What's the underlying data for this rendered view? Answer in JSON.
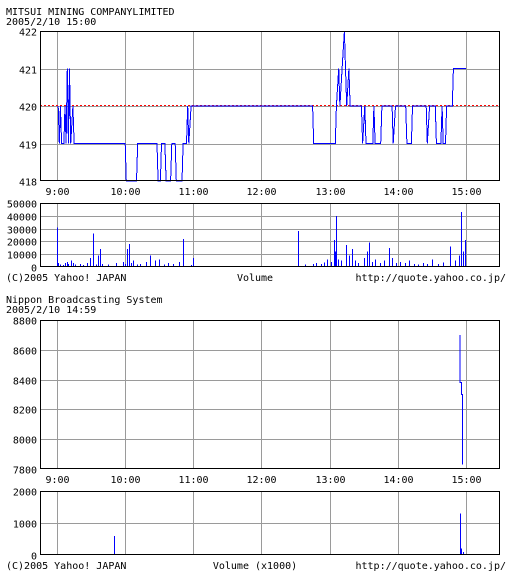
{
  "chart_data": [
    {
      "type": "line",
      "title": "MITSUI  MINING  COMPANYLIMITED",
      "subtitle": "2005/2/10 15:00",
      "x_ticks": [
        "9:00",
        "10:00",
        "11:00",
        "12:00",
        "13:00",
        "14:00",
        "15:00"
      ],
      "x_range": [
        "8:45",
        "15:30"
      ],
      "price": {
        "ylim": [
          418,
          422
        ],
        "y_ticks": [
          418,
          419,
          420,
          421,
          422
        ],
        "reference": 420,
        "reference_color": "#ff0000",
        "line_color": "#0000ff",
        "points": [
          [
            "9:01",
            420
          ],
          [
            "9:02",
            419
          ],
          [
            "9:03",
            420
          ],
          [
            "9:04",
            419
          ],
          [
            "9:06",
            419
          ],
          [
            "9:07",
            420
          ],
          [
            "9:08",
            419
          ],
          [
            "9:09",
            421
          ],
          [
            "9:10",
            419
          ],
          [
            "9:11",
            421
          ],
          [
            "9:12",
            419
          ],
          [
            "9:14",
            420
          ],
          [
            "9:15",
            419
          ],
          [
            "10:00",
            419
          ],
          [
            "10:01",
            418
          ],
          [
            "10:10",
            418
          ],
          [
            "10:11",
            419
          ],
          [
            "10:28",
            419
          ],
          [
            "10:29",
            418
          ],
          [
            "10:31",
            418
          ],
          [
            "10:32",
            419
          ],
          [
            "10:35",
            419
          ],
          [
            "10:36",
            418
          ],
          [
            "10:40",
            418
          ],
          [
            "10:41",
            419
          ],
          [
            "10:44",
            419
          ],
          [
            "10:45",
            418
          ],
          [
            "10:50",
            418
          ],
          [
            "10:51",
            419
          ],
          [
            "10:54",
            419
          ],
          [
            "10:55",
            420
          ],
          [
            "10:56",
            419
          ],
          [
            "10:58",
            420
          ],
          [
            "12:45",
            420
          ],
          [
            "12:46",
            419
          ],
          [
            "13:05",
            419
          ],
          [
            "13:06",
            420
          ],
          [
            "13:08",
            421
          ],
          [
            "13:09",
            420
          ],
          [
            "13:11",
            421
          ],
          [
            "13:13",
            422
          ],
          [
            "13:14",
            421
          ],
          [
            "13:15",
            420
          ],
          [
            "13:17",
            421
          ],
          [
            "13:18",
            420
          ],
          [
            "13:28",
            420
          ],
          [
            "13:29",
            419
          ],
          [
            "13:31",
            420
          ],
          [
            "13:32",
            419
          ],
          [
            "13:38",
            419
          ],
          [
            "13:39",
            420
          ],
          [
            "13:40",
            419
          ],
          [
            "13:45",
            419
          ],
          [
            "13:46",
            420
          ],
          [
            "13:55",
            420
          ],
          [
            "13:56",
            419
          ],
          [
            "13:58",
            420
          ],
          [
            "14:07",
            420
          ],
          [
            "14:08",
            419
          ],
          [
            "14:12",
            419
          ],
          [
            "14:13",
            420
          ],
          [
            "14:25",
            420
          ],
          [
            "14:26",
            419
          ],
          [
            "14:28",
            420
          ],
          [
            "14:33",
            420
          ],
          [
            "14:34",
            419
          ],
          [
            "14:38",
            419
          ],
          [
            "14:39",
            420
          ],
          [
            "14:40",
            419
          ],
          [
            "14:42",
            419
          ],
          [
            "14:43",
            420
          ],
          [
            "14:48",
            420
          ],
          [
            "14:49",
            421
          ],
          [
            "15:00",
            421
          ]
        ]
      },
      "volume": {
        "label": "Volume",
        "ylim": [
          0,
          50000
        ],
        "y_ticks": [
          0,
          10000,
          20000,
          30000,
          40000,
          50000
        ],
        "bar_color": "#0000ff",
        "bars": [
          [
            "9:00",
            31000
          ],
          [
            "9:01",
            3000
          ],
          [
            "9:03",
            2000
          ],
          [
            "9:05",
            1500
          ],
          [
            "9:07",
            3000
          ],
          [
            "9:09",
            4000
          ],
          [
            "9:10",
            2500
          ],
          [
            "9:12",
            5000
          ],
          [
            "9:14",
            3000
          ],
          [
            "9:16",
            2000
          ],
          [
            "9:20",
            2500
          ],
          [
            "9:23",
            1500
          ],
          [
            "9:26",
            3000
          ],
          [
            "9:29",
            7000
          ],
          [
            "9:32",
            26000
          ],
          [
            "9:34",
            2000
          ],
          [
            "9:36",
            9000
          ],
          [
            "9:38",
            14000
          ],
          [
            "9:40",
            2500
          ],
          [
            "9:45",
            2000
          ],
          [
            "9:52",
            3000
          ],
          [
            "9:58",
            4000
          ],
          [
            "10:00",
            2500
          ],
          [
            "10:02",
            14000
          ],
          [
            "10:03",
            18000
          ],
          [
            "10:05",
            3000
          ],
          [
            "10:07",
            5000
          ],
          [
            "10:10",
            2000
          ],
          [
            "10:13",
            2500
          ],
          [
            "10:18",
            4000
          ],
          [
            "10:22",
            9000
          ],
          [
            "10:26",
            5000
          ],
          [
            "10:30",
            6000
          ],
          [
            "10:34",
            2000
          ],
          [
            "10:38",
            3000
          ],
          [
            "10:42",
            2500
          ],
          [
            "10:47",
            4000
          ],
          [
            "10:51",
            22000
          ],
          [
            "10:58",
            1500
          ],
          [
            "11:00",
            7000
          ],
          [
            "12:32",
            28000
          ],
          [
            "12:38",
            2000
          ],
          [
            "12:45",
            2500
          ],
          [
            "12:48",
            3000
          ],
          [
            "12:52",
            2500
          ],
          [
            "12:55",
            3500
          ],
          [
            "12:58",
            6000
          ],
          [
            "13:01",
            4000
          ],
          [
            "13:04",
            21000
          ],
          [
            "13:05",
            12000
          ],
          [
            "13:06",
            40000
          ],
          [
            "13:07",
            6000
          ],
          [
            "13:10",
            5000
          ],
          [
            "13:14",
            17000
          ],
          [
            "13:17",
            9000
          ],
          [
            "13:20",
            14000
          ],
          [
            "13:22",
            5000
          ],
          [
            "13:25",
            3000
          ],
          [
            "13:30",
            7000
          ],
          [
            "13:33",
            12000
          ],
          [
            "13:35",
            19000
          ],
          [
            "13:37",
            4000
          ],
          [
            "13:40",
            6000
          ],
          [
            "13:44",
            3000
          ],
          [
            "13:48",
            5000
          ],
          [
            "13:52",
            15000
          ],
          [
            "13:55",
            7000
          ],
          [
            "13:58",
            3000
          ],
          [
            "14:02",
            4000
          ],
          [
            "14:06",
            3000
          ],
          [
            "14:10",
            5000
          ],
          [
            "14:14",
            2500
          ],
          [
            "14:18",
            2000
          ],
          [
            "14:22",
            3000
          ],
          [
            "14:26",
            2500
          ],
          [
            "14:30",
            6000
          ],
          [
            "14:35",
            2500
          ],
          [
            "14:40",
            3500
          ],
          [
            "14:46",
            16000
          ],
          [
            "14:50",
            5000
          ],
          [
            "14:54",
            9000
          ],
          [
            "14:56",
            43000
          ],
          [
            "14:57",
            12000
          ],
          [
            "14:59",
            21000
          ]
        ]
      },
      "credit_left": "(C)2005 Yahoo! JAPAN",
      "credit_right": "http://quote.yahoo.co.jp/"
    },
    {
      "type": "line",
      "title": "Nippon  Broadcasting  System",
      "subtitle": "2005/2/10 14:59",
      "x_ticks": [
        "9:00",
        "10:00",
        "11:00",
        "12:00",
        "13:00",
        "14:00",
        "15:00"
      ],
      "x_range": [
        "8:45",
        "15:30"
      ],
      "price": {
        "ylim": [
          7800,
          8800
        ],
        "y_ticks": [
          7800,
          8000,
          8200,
          8400,
          8600,
          8800
        ],
        "reference": 7800,
        "reference_color": "#ff0000",
        "line_color": "#0000ff",
        "points": [
          [
            "14:55",
            8700
          ],
          [
            "14:55",
            8380
          ],
          [
            "14:56",
            8380
          ],
          [
            "14:56",
            8300
          ],
          [
            "14:57",
            8300
          ],
          [
            "14:57",
            7830
          ]
        ]
      },
      "volume": {
        "label": "Volume (x1000)",
        "ylim": [
          0,
          2000
        ],
        "y_ticks": [
          0,
          1000,
          2000
        ],
        "bar_color": "#0000ff",
        "bars": [
          [
            "9:50",
            600
          ],
          [
            "14:55",
            1300
          ],
          [
            "14:56",
            200
          ],
          [
            "14:57",
            100
          ]
        ]
      },
      "credit_left": "(C)2005 Yahoo! JAPAN",
      "credit_right": "http://quote.yahoo.co.jp/"
    }
  ]
}
